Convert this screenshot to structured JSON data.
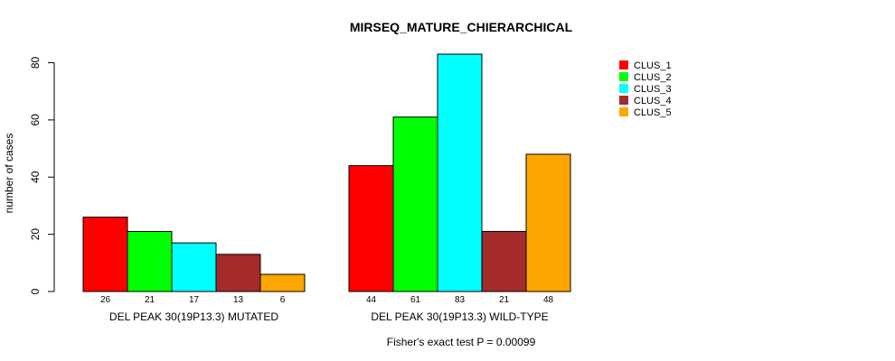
{
  "chart_data": {
    "type": "bar",
    "title": "MIRSEQ_MATURE_CHIERARCHICAL",
    "ylabel": "number of cases",
    "ylim": [
      0,
      83
    ],
    "yticks": [
      0,
      20,
      40,
      60,
      80
    ],
    "footnote": "Fisher's exact test P = 0.00099",
    "series": [
      {
        "name": "CLUS_1",
        "color": "#ff0000"
      },
      {
        "name": "CLUS_2",
        "color": "#00ff00"
      },
      {
        "name": "CLUS_3",
        "color": "#00ffff"
      },
      {
        "name": "CLUS_4",
        "color": "#a52a2a"
      },
      {
        "name": "CLUS_5",
        "color": "#ffa500"
      }
    ],
    "groups": [
      {
        "label": "DEL PEAK 30(19P13.3) MUTATED",
        "values": [
          26,
          21,
          17,
          13,
          6
        ]
      },
      {
        "label": "DEL PEAK 30(19P13.3) WILD-TYPE",
        "values": [
          44,
          61,
          83,
          21,
          48
        ]
      }
    ],
    "legend_position": "top-right"
  }
}
